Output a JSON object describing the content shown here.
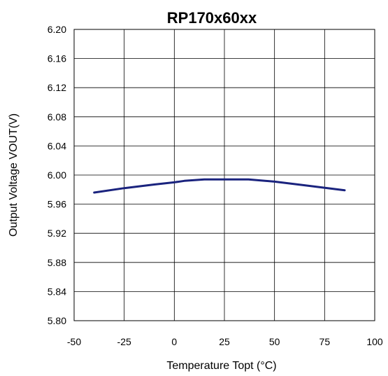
{
  "chart_data": {
    "type": "line",
    "title": "RP170x60xx",
    "xlabel": "Temperature Topt (°C)",
    "ylabel": "Output Voltage  VOUT(V)",
    "xlim": [
      -50,
      100
    ],
    "ylim": [
      5.8,
      6.2
    ],
    "xticks": [
      "-50",
      "-25",
      "0",
      "25",
      "50",
      "75",
      "100"
    ],
    "yticks": [
      "6.20",
      "6.16",
      "6.12",
      "6.08",
      "6.04",
      "6.00",
      "5.96",
      "5.92",
      "5.88",
      "5.84",
      "5.80"
    ],
    "grid": true,
    "legend": "none",
    "series": [
      {
        "color": "#1a237e",
        "x": [
          -40,
          -25,
          -10,
          0,
          5,
          10,
          15,
          25,
          37,
          50,
          65,
          85
        ],
        "y": [
          5.976,
          5.982,
          5.987,
          5.99,
          5.992,
          5.993,
          5.994,
          5.994,
          5.994,
          5.991,
          5.986,
          5.979
        ]
      }
    ]
  }
}
